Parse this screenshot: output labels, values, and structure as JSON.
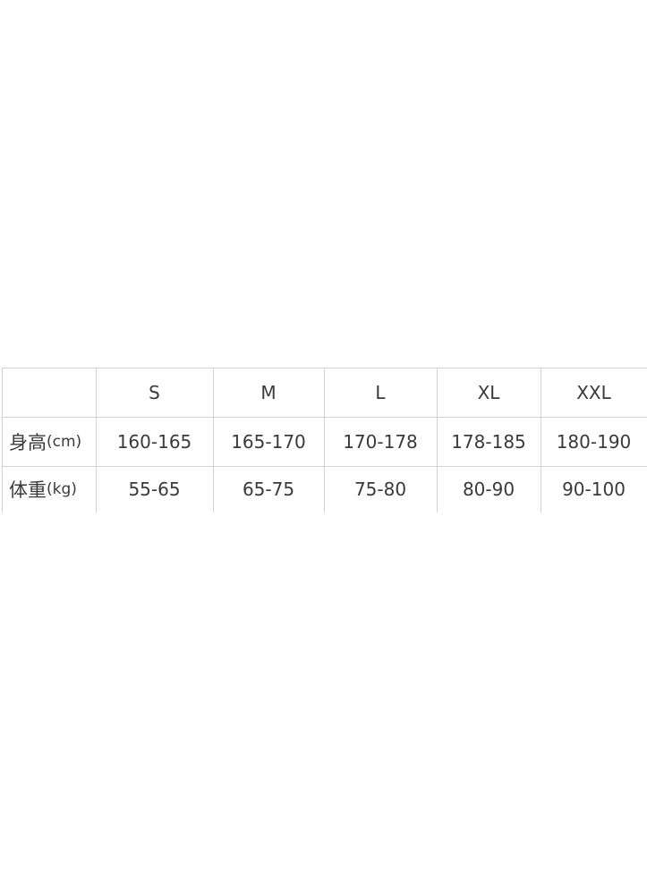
{
  "size_table": {
    "header": [
      "",
      "S",
      "M",
      "L",
      "XL",
      "XXL"
    ],
    "rows": [
      {
        "label": "身高",
        "unit": "(cm)",
        "values": [
          "160-165",
          "165-170",
          "170-178",
          "178-185",
          "180-190"
        ]
      },
      {
        "label": "体重",
        "unit": "(kg)",
        "values": [
          "55-65",
          "65-75",
          "75-80",
          "80-90",
          "90-100"
        ]
      }
    ]
  }
}
